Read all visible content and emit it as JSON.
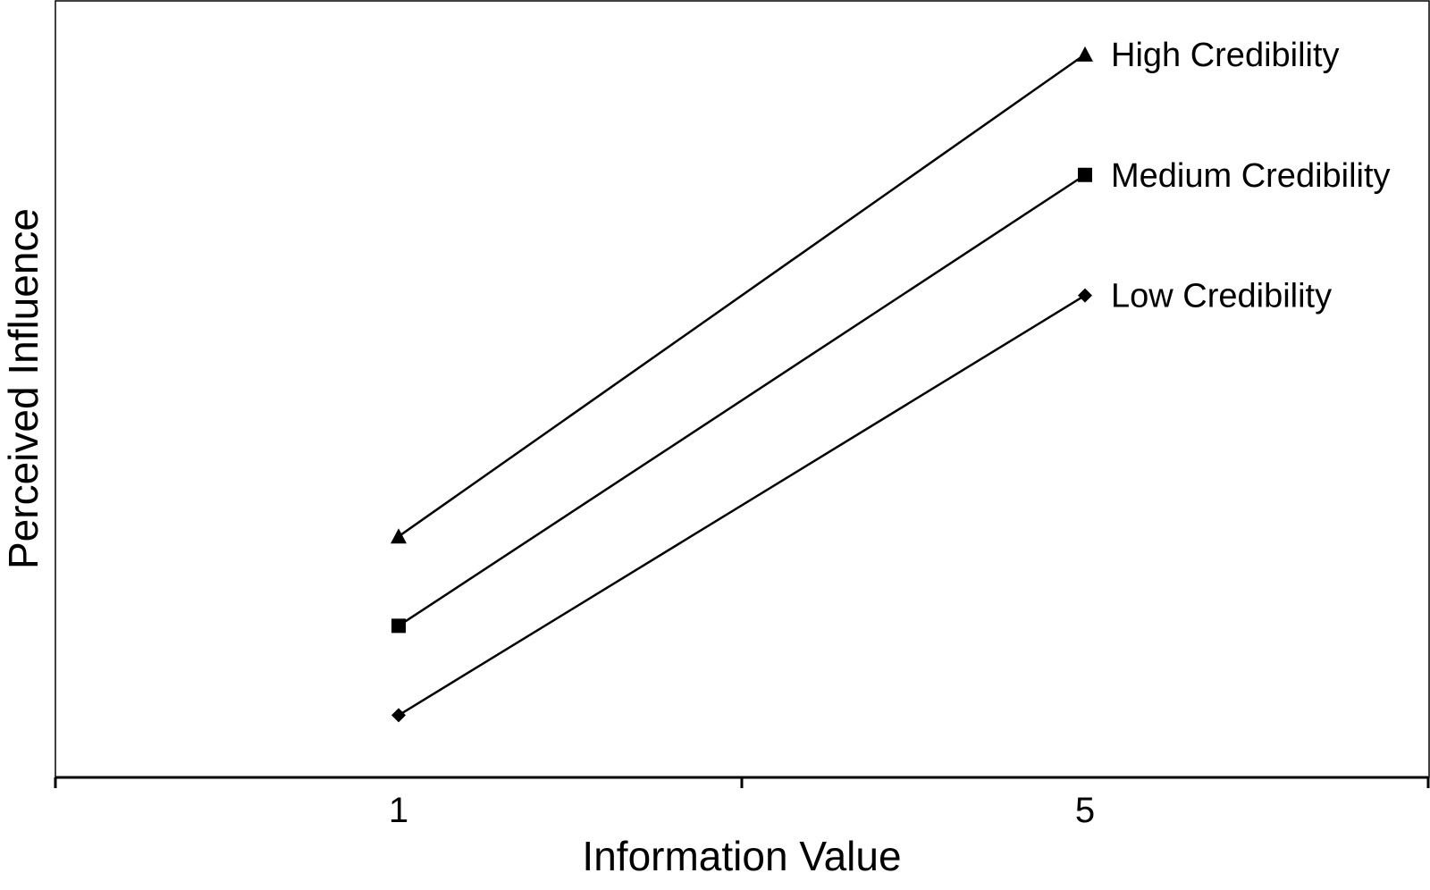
{
  "chart_data": {
    "type": "line",
    "title": "",
    "xlabel": "Information Value",
    "ylabel": "Perceived Influence",
    "x": [
      1,
      5
    ],
    "x_ticks": [
      "1",
      "5"
    ],
    "xlim": [
      -1,
      7
    ],
    "ylim": [
      0,
      10
    ],
    "grid": false,
    "legend": "inline at line ends",
    "series": [
      {
        "name": "High Credibility",
        "marker": "triangle",
        "values": [
          3.1,
          9.3
        ]
      },
      {
        "name": "Medium Credibility",
        "marker": "square",
        "values": [
          1.95,
          7.75
        ]
      },
      {
        "name": "Low Credibility",
        "marker": "diamond",
        "values": [
          0.8,
          6.2
        ]
      }
    ],
    "colors": {
      "line": "#000000",
      "axis": "#000000"
    }
  }
}
